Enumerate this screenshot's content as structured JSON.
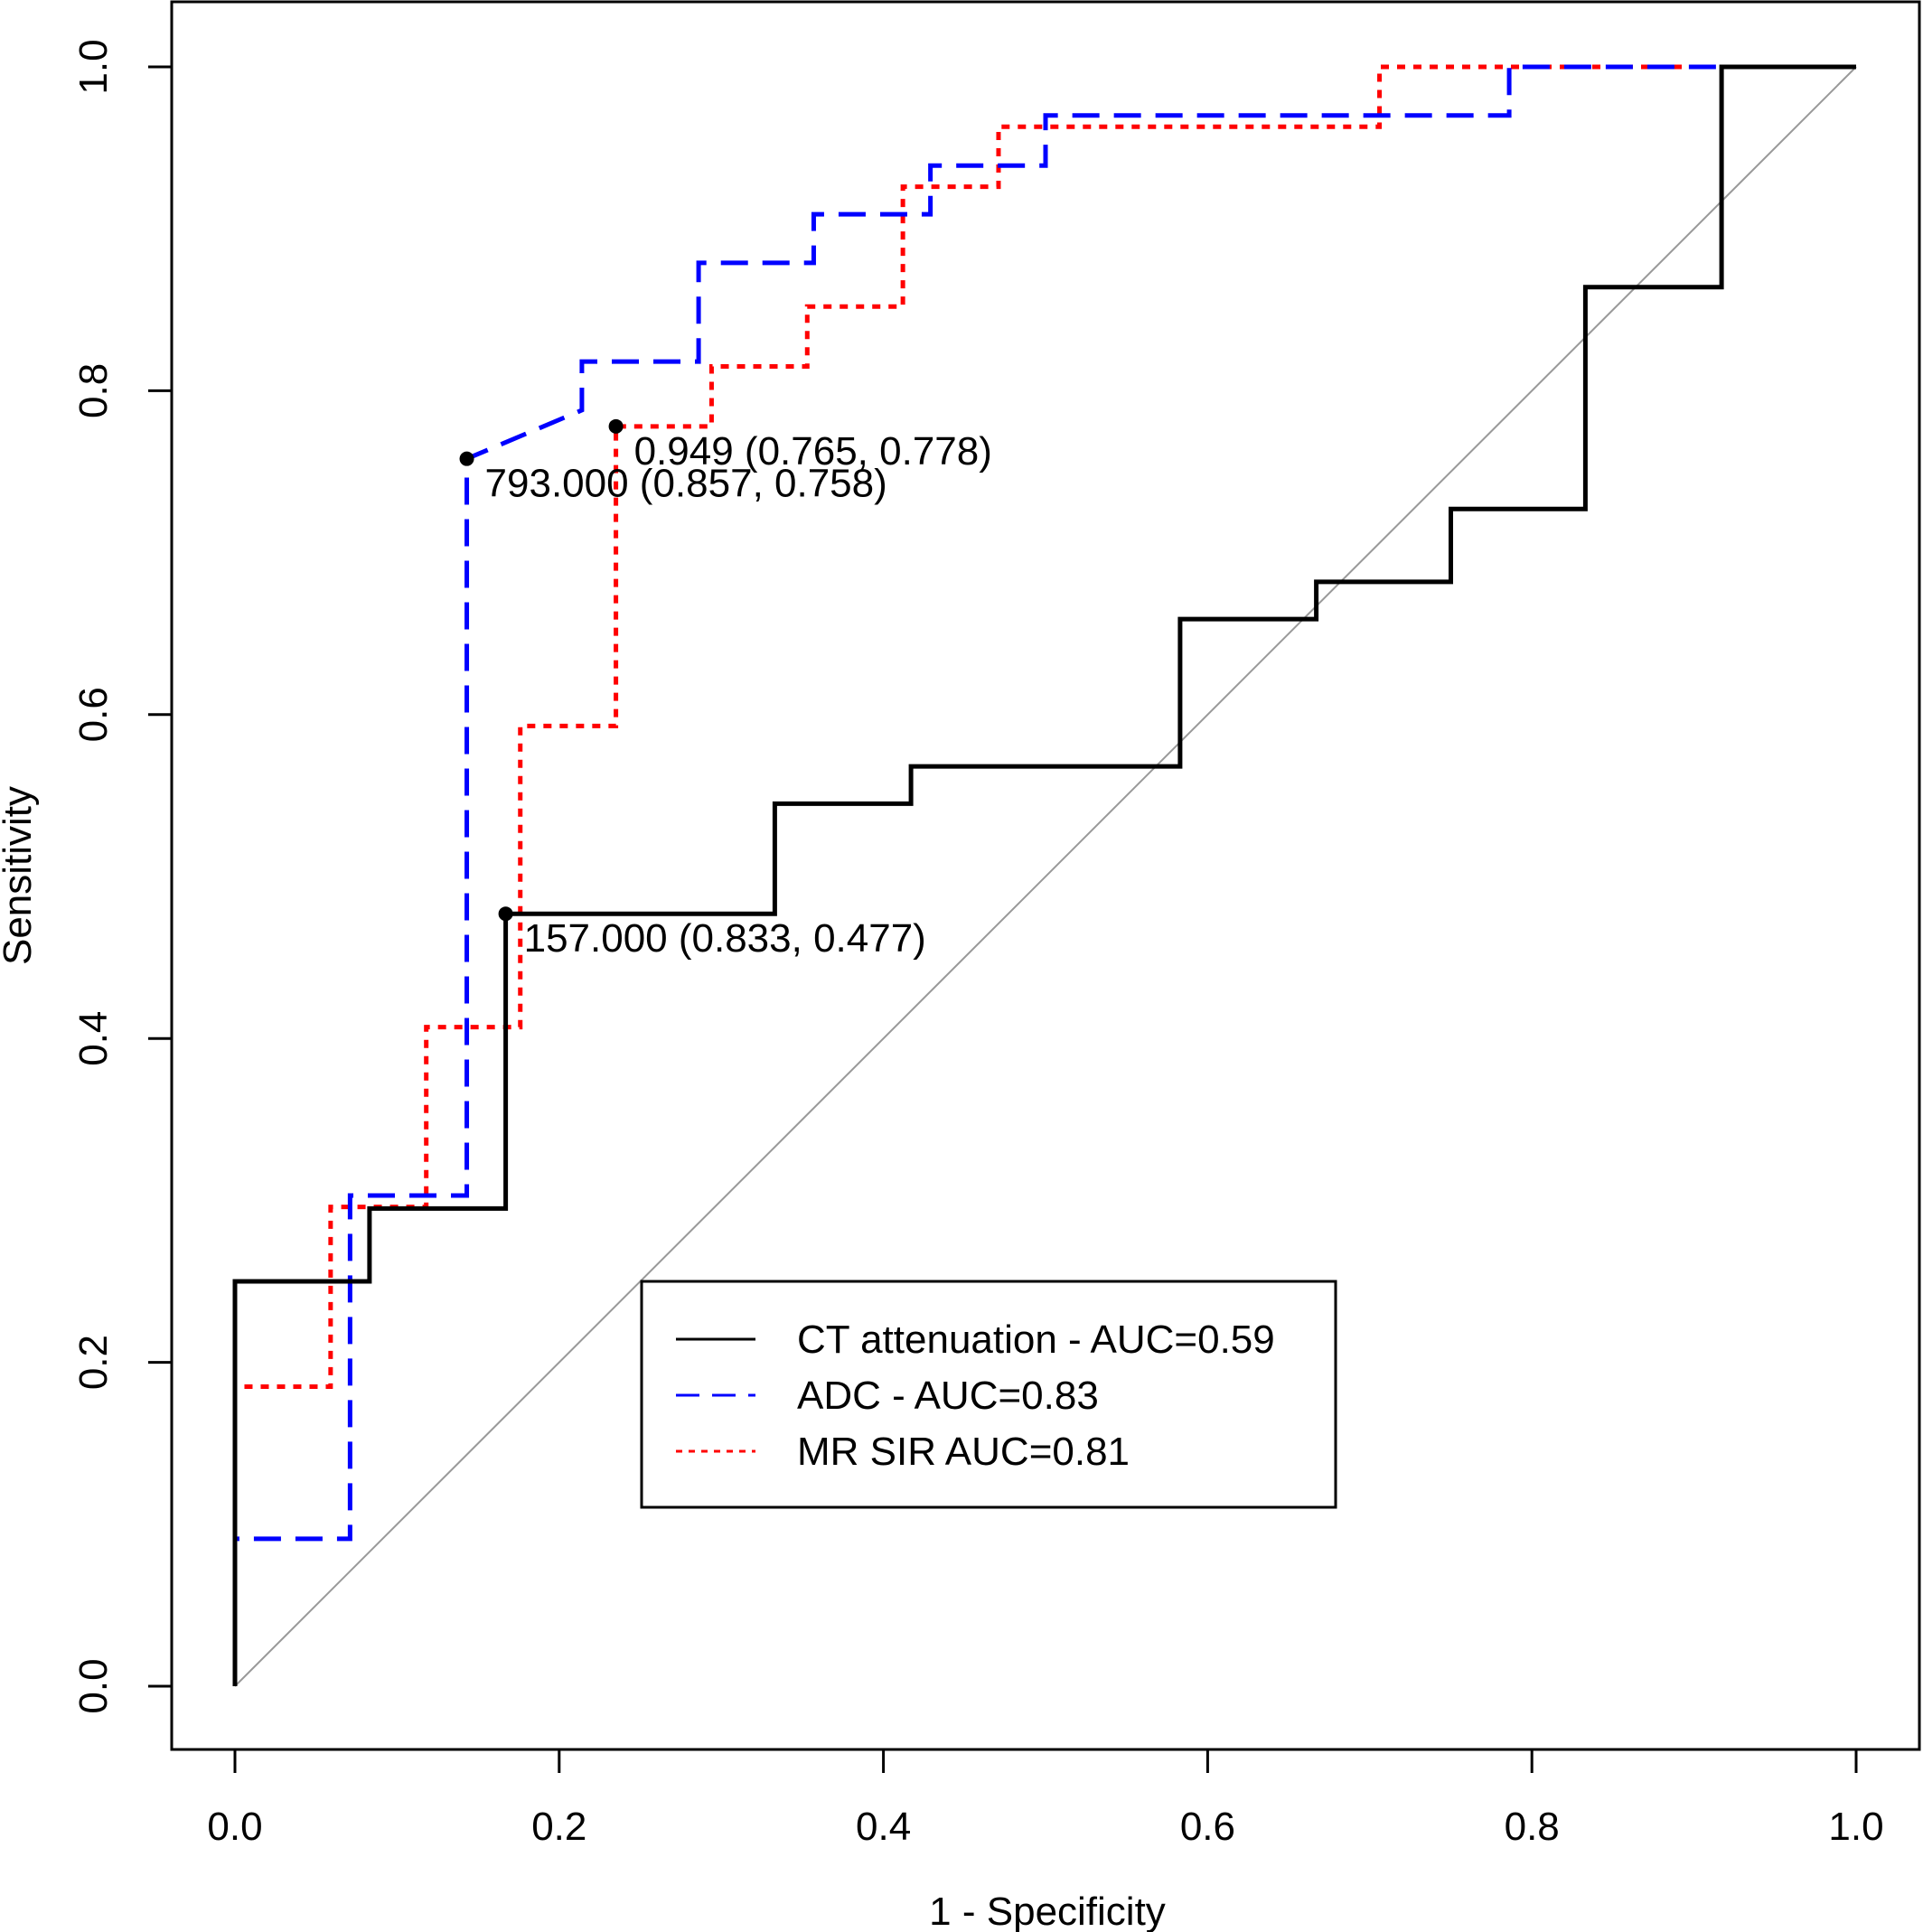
{
  "chart_data": {
    "type": "line",
    "title": "",
    "xlabel": "1 - Specificity",
    "ylabel": "Sensitivity",
    "xlim": [
      0,
      1
    ],
    "ylim": [
      0,
      1
    ],
    "x_ticks": [
      "0.0",
      "0.2",
      "0.4",
      "0.6",
      "0.8",
      "1.0"
    ],
    "y_ticks": [
      "0.0",
      "0.2",
      "0.4",
      "0.6",
      "0.8",
      "1.0"
    ],
    "grid": false,
    "legend_position": "bottom-right",
    "reference_line": {
      "from": [
        0,
        0
      ],
      "to": [
        1,
        1
      ],
      "color": "#999999"
    },
    "series": [
      {
        "name": "CT attenuation - AUC=0.59",
        "color": "#000000",
        "style": "solid",
        "x": [
          0,
          0,
          0.083,
          0.083,
          0.167,
          0.167,
          0.333,
          0.333,
          0.417,
          0.417,
          0.583,
          0.583,
          0.667,
          0.667,
          0.75,
          0.75,
          0.833,
          0.833,
          0.917,
          0.917,
          1
        ],
        "y": [
          0,
          0.25,
          0.25,
          0.295,
          0.295,
          0.477,
          0.477,
          0.545,
          0.545,
          0.568,
          0.568,
          0.659,
          0.659,
          0.682,
          0.682,
          0.727,
          0.727,
          0.864,
          0.864,
          1,
          1
        ]
      },
      {
        "name": "ADC - AUC=0.83",
        "color": "#0000ff",
        "style": "dashed",
        "x": [
          0,
          0,
          0.071,
          0.071,
          0.143,
          0.143,
          0.214,
          0.214,
          0.286,
          0.286,
          0.357,
          0.357,
          0.429,
          0.429,
          0.5,
          0.5,
          0.786,
          0.786,
          1
        ],
        "y": [
          0,
          0.091,
          0.091,
          0.303,
          0.303,
          0.758,
          0.788,
          0.818,
          0.818,
          0.879,
          0.879,
          0.909,
          0.909,
          0.939,
          0.939,
          0.97,
          0.97,
          1,
          1
        ]
      },
      {
        "name": "MR SIR AUC=0.81",
        "color": "#ff0000",
        "style": "dotted",
        "x": [
          0,
          0,
          0.059,
          0.059,
          0.118,
          0.118,
          0.176,
          0.176,
          0.235,
          0.235,
          0.294,
          0.294,
          0.353,
          0.353,
          0.412,
          0.412,
          0.471,
          0.471,
          0.706,
          0.706,
          1
        ],
        "y": [
          0,
          0.185,
          0.185,
          0.296,
          0.296,
          0.407,
          0.407,
          0.593,
          0.593,
          0.778,
          0.778,
          0.815,
          0.815,
          0.852,
          0.852,
          0.926,
          0.926,
          0.963,
          0.963,
          1,
          1
        ]
      }
    ],
    "annotations": [
      {
        "x": 0.235,
        "y": 0.778,
        "text": "0.949 (0.765, 0.778)"
      },
      {
        "x": 0.143,
        "y": 0.758,
        "text": "793.000 (0.857, 0.758)"
      },
      {
        "x": 0.167,
        "y": 0.477,
        "text": "157.000 (0.833, 0.477)"
      }
    ]
  }
}
